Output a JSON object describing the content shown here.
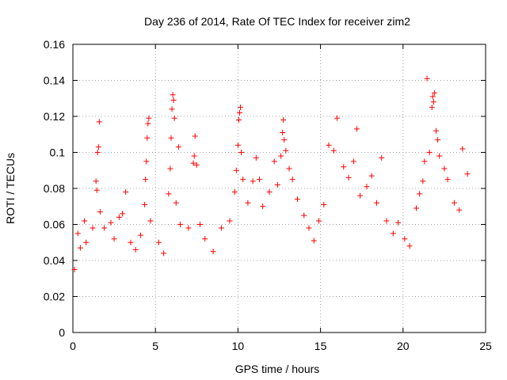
{
  "chart_data": {
    "type": "scatter",
    "title": "Day 236 of 2014, Rate Of TEC Index for receiver zim2",
    "xlabel": "GPS time / hours",
    "ylabel": "ROTI / TECUs",
    "xlim": [
      0,
      25
    ],
    "ylim": [
      0,
      0.16
    ],
    "grid": true,
    "marker": "+",
    "color": "#ff0000",
    "x_tick_labels": [
      "0",
      "5",
      "10",
      "15",
      "20",
      "25"
    ],
    "y_tick_labels": [
      "0",
      "0.02",
      "0.04",
      "0.06",
      "0.08",
      "0.1",
      "0.12",
      "0.14",
      "0.16"
    ],
    "series": [
      {
        "name": "ROTI",
        "points": [
          [
            0.1,
            0.035
          ],
          [
            0.3,
            0.055
          ],
          [
            0.45,
            0.047
          ],
          [
            0.7,
            0.062
          ],
          [
            0.8,
            0.05
          ],
          [
            1.2,
            0.058
          ],
          [
            1.4,
            0.084
          ],
          [
            1.45,
            0.079
          ],
          [
            1.5,
            0.1
          ],
          [
            1.55,
            0.103
          ],
          [
            1.6,
            0.117
          ],
          [
            1.65,
            0.067
          ],
          [
            1.9,
            0.058
          ],
          [
            2.3,
            0.061
          ],
          [
            2.5,
            0.052
          ],
          [
            2.8,
            0.064
          ],
          [
            3.0,
            0.066
          ],
          [
            3.2,
            0.078
          ],
          [
            3.5,
            0.05
          ],
          [
            3.8,
            0.046
          ],
          [
            4.1,
            0.054
          ],
          [
            4.35,
            0.071
          ],
          [
            4.4,
            0.085
          ],
          [
            4.45,
            0.095
          ],
          [
            4.5,
            0.108
          ],
          [
            4.55,
            0.116
          ],
          [
            4.6,
            0.119
          ],
          [
            4.7,
            0.062
          ],
          [
            5.2,
            0.05
          ],
          [
            5.5,
            0.044
          ],
          [
            5.8,
            0.077
          ],
          [
            5.9,
            0.091
          ],
          [
            5.95,
            0.108
          ],
          [
            6.0,
            0.124
          ],
          [
            6.05,
            0.132
          ],
          [
            6.1,
            0.129
          ],
          [
            6.15,
            0.119
          ],
          [
            6.25,
            0.072
          ],
          [
            6.4,
            0.103
          ],
          [
            6.5,
            0.06
          ],
          [
            7.0,
            0.058
          ],
          [
            7.3,
            0.094
          ],
          [
            7.35,
            0.098
          ],
          [
            7.4,
            0.109
          ],
          [
            7.5,
            0.093
          ],
          [
            7.7,
            0.06
          ],
          [
            8.0,
            0.052
          ],
          [
            8.5,
            0.045
          ],
          [
            9.0,
            0.058
          ],
          [
            9.5,
            0.062
          ],
          [
            9.8,
            0.078
          ],
          [
            9.9,
            0.09
          ],
          [
            10.0,
            0.104
          ],
          [
            10.05,
            0.118
          ],
          [
            10.1,
            0.122
          ],
          [
            10.15,
            0.125
          ],
          [
            10.2,
            0.1
          ],
          [
            10.3,
            0.085
          ],
          [
            10.6,
            0.072
          ],
          [
            10.9,
            0.084
          ],
          [
            11.1,
            0.097
          ],
          [
            11.3,
            0.085
          ],
          [
            11.5,
            0.07
          ],
          [
            11.9,
            0.078
          ],
          [
            12.2,
            0.095
          ],
          [
            12.4,
            0.082
          ],
          [
            12.6,
            0.098
          ],
          [
            12.7,
            0.111
          ],
          [
            12.75,
            0.118
          ],
          [
            12.8,
            0.107
          ],
          [
            12.9,
            0.101
          ],
          [
            13.1,
            0.091
          ],
          [
            13.3,
            0.085
          ],
          [
            13.6,
            0.074
          ],
          [
            14.0,
            0.065
          ],
          [
            14.3,
            0.058
          ],
          [
            14.6,
            0.051
          ],
          [
            14.9,
            0.062
          ],
          [
            15.2,
            0.071
          ],
          [
            15.5,
            0.104
          ],
          [
            15.8,
            0.101
          ],
          [
            16.0,
            0.119
          ],
          [
            16.4,
            0.092
          ],
          [
            16.7,
            0.086
          ],
          [
            17.0,
            0.095
          ],
          [
            17.2,
            0.113
          ],
          [
            17.4,
            0.076
          ],
          [
            17.8,
            0.081
          ],
          [
            18.1,
            0.087
          ],
          [
            18.4,
            0.072
          ],
          [
            18.7,
            0.097
          ],
          [
            19.0,
            0.062
          ],
          [
            19.4,
            0.055
          ],
          [
            19.7,
            0.061
          ],
          [
            20.1,
            0.052
          ],
          [
            20.4,
            0.048
          ],
          [
            20.8,
            0.069
          ],
          [
            21.0,
            0.077
          ],
          [
            21.2,
            0.084
          ],
          [
            21.3,
            0.095
          ],
          [
            21.45,
            0.141
          ],
          [
            21.6,
            0.1
          ],
          [
            21.75,
            0.125
          ],
          [
            21.8,
            0.131
          ],
          [
            21.85,
            0.128
          ],
          [
            21.9,
            0.133
          ],
          [
            22.0,
            0.112
          ],
          [
            22.1,
            0.107
          ],
          [
            22.2,
            0.098
          ],
          [
            22.5,
            0.091
          ],
          [
            22.7,
            0.085
          ],
          [
            23.1,
            0.072
          ],
          [
            23.4,
            0.068
          ],
          [
            23.6,
            0.102
          ],
          [
            23.9,
            0.088
          ]
        ]
      }
    ]
  }
}
